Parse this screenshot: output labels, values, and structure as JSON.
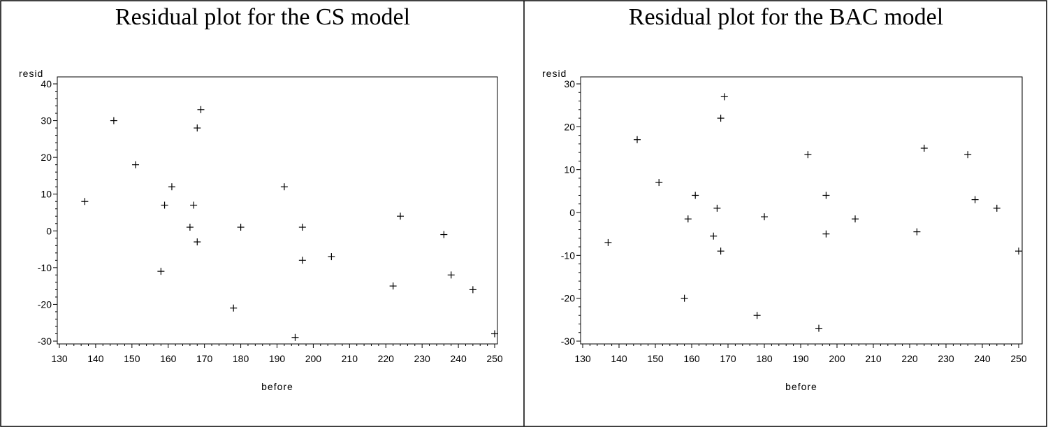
{
  "chart_data": [
    {
      "type": "scatter",
      "title": "Residual plot for the CS model",
      "xlabel": "before",
      "ylabel": "resid",
      "xlim": [
        130,
        250
      ],
      "ylim": [
        -30,
        40
      ],
      "x_ticks": [
        130,
        140,
        150,
        160,
        170,
        180,
        190,
        200,
        210,
        220,
        230,
        240,
        250
      ],
      "y_ticks": [
        -30,
        -20,
        -10,
        0,
        10,
        20,
        30,
        40
      ],
      "marker": "+",
      "grid": false,
      "points": [
        {
          "x": 137,
          "y": 8
        },
        {
          "x": 145,
          "y": 30
        },
        {
          "x": 151,
          "y": 18
        },
        {
          "x": 158,
          "y": -11
        },
        {
          "x": 159,
          "y": 7
        },
        {
          "x": 161,
          "y": 12
        },
        {
          "x": 166,
          "y": 1
        },
        {
          "x": 167,
          "y": 7
        },
        {
          "x": 168,
          "y": 28
        },
        {
          "x": 168,
          "y": -3
        },
        {
          "x": 169,
          "y": 33
        },
        {
          "x": 178,
          "y": -21
        },
        {
          "x": 180,
          "y": 1
        },
        {
          "x": 192,
          "y": 12
        },
        {
          "x": 195,
          "y": -29
        },
        {
          "x": 197,
          "y": 1
        },
        {
          "x": 197,
          "y": -8
        },
        {
          "x": 205,
          "y": -7
        },
        {
          "x": 222,
          "y": -15
        },
        {
          "x": 224,
          "y": 4
        },
        {
          "x": 236,
          "y": -1
        },
        {
          "x": 238,
          "y": -12
        },
        {
          "x": 244,
          "y": -16
        },
        {
          "x": 250,
          "y": -28
        }
      ]
    },
    {
      "type": "scatter",
      "title": "Residual plot for the BAC model",
      "xlabel": "before",
      "ylabel": "resid",
      "xlim": [
        130,
        250
      ],
      "ylim": [
        -30,
        30
      ],
      "x_ticks": [
        130,
        140,
        150,
        160,
        170,
        180,
        190,
        200,
        210,
        220,
        230,
        240,
        250
      ],
      "y_ticks": [
        -30,
        -20,
        -10,
        0,
        10,
        20,
        30
      ],
      "marker": "+",
      "grid": false,
      "points": [
        {
          "x": 137,
          "y": -7
        },
        {
          "x": 145,
          "y": 17
        },
        {
          "x": 151,
          "y": 7
        },
        {
          "x": 158,
          "y": -20
        },
        {
          "x": 159,
          "y": -1.5
        },
        {
          "x": 161,
          "y": 4
        },
        {
          "x": 166,
          "y": -5.5
        },
        {
          "x": 167,
          "y": 1
        },
        {
          "x": 168,
          "y": 22
        },
        {
          "x": 168,
          "y": -9
        },
        {
          "x": 169,
          "y": 27
        },
        {
          "x": 178,
          "y": -24
        },
        {
          "x": 180,
          "y": -1
        },
        {
          "x": 192,
          "y": 13.5
        },
        {
          "x": 195,
          "y": -27
        },
        {
          "x": 197,
          "y": 4
        },
        {
          "x": 197,
          "y": -5
        },
        {
          "x": 205,
          "y": -1.5
        },
        {
          "x": 222,
          "y": -4.5
        },
        {
          "x": 224,
          "y": 15
        },
        {
          "x": 236,
          "y": 13.5
        },
        {
          "x": 238,
          "y": 3
        },
        {
          "x": 244,
          "y": 1
        },
        {
          "x": 250,
          "y": -9
        }
      ]
    }
  ]
}
